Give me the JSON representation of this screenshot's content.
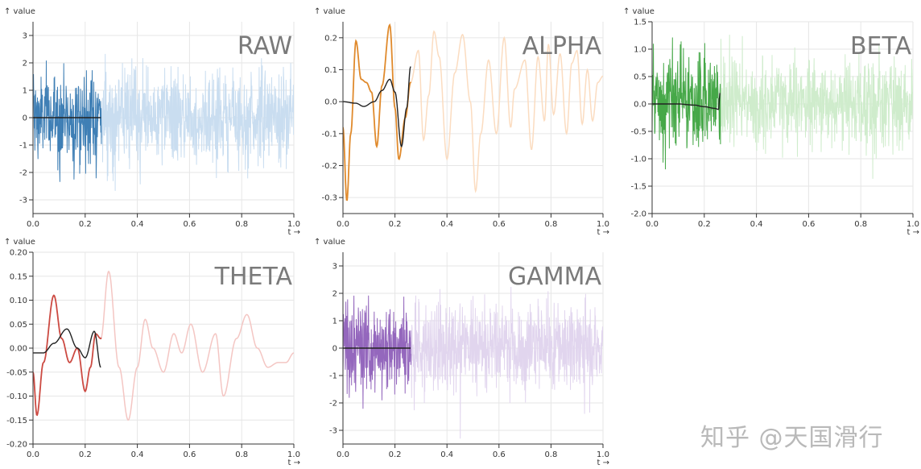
{
  "watermark": "知乎 @天国滑行",
  "chart_data": [
    {
      "type": "line",
      "title": "RAW",
      "ylabel": "↑ value",
      "xlabel": "t →",
      "xlim": [
        0,
        1
      ],
      "ylim": [
        -3.5,
        3.5
      ],
      "xticks": [
        "0.0",
        "0.2",
        "0.4",
        "0.6",
        "0.8",
        "1.0"
      ],
      "yticks": [
        "-3",
        "-2",
        "-1",
        "0",
        "1",
        "2",
        "3"
      ],
      "ytick_values": [
        -3,
        -2,
        -1,
        0,
        1,
        2,
        3
      ],
      "grid": true,
      "signal": "noise",
      "amplitude": 0.85,
      "highlight_end": 0.26,
      "colors": {
        "dark": "#3f7fb5",
        "light": "#c9ddf0"
      },
      "filtered": {
        "to": 0.26,
        "points": [
          [
            0,
            0
          ],
          [
            0.26,
            0
          ]
        ]
      }
    },
    {
      "type": "line",
      "title": "ALPHA",
      "ylabel": "↑ value",
      "xlabel": "t →",
      "xlim": [
        0,
        1
      ],
      "ylim": [
        -0.35,
        0.25
      ],
      "xticks": [
        "0.0",
        "0.2",
        "0.4",
        "0.6",
        "0.8",
        "1.0"
      ],
      "yticks": [
        "-0.3",
        "-0.2",
        "-0.1",
        "0.0",
        "0.1",
        "0.2"
      ],
      "ytick_values": [
        -0.3,
        -0.2,
        -0.1,
        0.0,
        0.1,
        0.2
      ],
      "grid": true,
      "signal": "wave",
      "highlight_end": 0.26,
      "colors": {
        "dark": "#e08a2c",
        "light": "#fbdcc0"
      },
      "series": [
        [
          0,
          -0.08
        ],
        [
          0.015,
          -0.31
        ],
        [
          0.03,
          -0.1
        ],
        [
          0.05,
          0.19
        ],
        [
          0.07,
          0.07
        ],
        [
          0.09,
          0.06
        ],
        [
          0.11,
          0.03
        ],
        [
          0.13,
          -0.14
        ],
        [
          0.15,
          0.05
        ],
        [
          0.18,
          0.24
        ],
        [
          0.2,
          -0.02
        ],
        [
          0.215,
          -0.18
        ],
        [
          0.24,
          -0.05
        ],
        [
          0.26,
          0.06
        ],
        [
          0.29,
          0.16
        ],
        [
          0.31,
          -0.12
        ],
        [
          0.33,
          0.02
        ],
        [
          0.35,
          0.22
        ],
        [
          0.37,
          0.14
        ],
        [
          0.4,
          -0.18
        ],
        [
          0.43,
          0.09
        ],
        [
          0.46,
          0.21
        ],
        [
          0.49,
          0.0
        ],
        [
          0.51,
          -0.28
        ],
        [
          0.53,
          -0.1
        ],
        [
          0.56,
          0.13
        ],
        [
          0.59,
          -0.1
        ],
        [
          0.62,
          0.2
        ],
        [
          0.645,
          -0.08
        ],
        [
          0.66,
          0.04
        ],
        [
          0.7,
          0.13
        ],
        [
          0.725,
          -0.15
        ],
        [
          0.75,
          0.14
        ],
        [
          0.775,
          -0.06
        ],
        [
          0.79,
          0.18
        ],
        [
          0.81,
          -0.04
        ],
        [
          0.835,
          0.15
        ],
        [
          0.86,
          -0.1
        ],
        [
          0.88,
          0.12
        ],
        [
          0.9,
          0.16
        ],
        [
          0.92,
          -0.07
        ],
        [
          0.94,
          0.1
        ],
        [
          0.96,
          -0.06
        ],
        [
          0.98,
          0.06
        ],
        [
          1.0,
          0.08
        ]
      ],
      "filtered": {
        "to": 0.26,
        "points": [
          [
            0,
            0.0
          ],
          [
            0.05,
            -0.005
          ],
          [
            0.08,
            -0.015
          ],
          [
            0.12,
            0.0
          ],
          [
            0.15,
            0.035
          ],
          [
            0.18,
            0.07
          ],
          [
            0.2,
            0.03
          ],
          [
            0.225,
            -0.14
          ],
          [
            0.245,
            -0.02
          ],
          [
            0.26,
            0.11
          ]
        ]
      }
    },
    {
      "type": "line",
      "title": "BETA",
      "ylabel": "↑ value",
      "xlabel": "t →",
      "xlim": [
        0,
        1
      ],
      "ylim": [
        -2.0,
        1.5
      ],
      "xticks": [
        "0.0",
        "0.2",
        "0.4",
        "0.6",
        "0.8",
        "1.0"
      ],
      "yticks": [
        "-2.0",
        "-1.5",
        "-1.0",
        "-0.5",
        "0.0",
        "0.5",
        "1.0",
        "1.5"
      ],
      "ytick_values": [
        -2.0,
        -1.5,
        -1.0,
        -0.5,
        0.0,
        0.5,
        1.0,
        1.5
      ],
      "grid": true,
      "signal": "noise",
      "amplitude": 0.42,
      "highlight_end": 0.26,
      "colors": {
        "dark": "#46a848",
        "light": "#cfeccc"
      },
      "filtered": {
        "to": 0.26,
        "points": [
          [
            0,
            0.0
          ],
          [
            0.1,
            0.0
          ],
          [
            0.16,
            -0.02
          ],
          [
            0.2,
            -0.05
          ],
          [
            0.24,
            -0.08
          ],
          [
            0.255,
            -0.1
          ],
          [
            0.26,
            0.2
          ]
        ]
      }
    },
    {
      "type": "line",
      "title": "THETA",
      "ylabel": "↑ value",
      "xlabel": "t →",
      "xlim": [
        0,
        1
      ],
      "ylim": [
        -0.2,
        0.2
      ],
      "xticks": [
        "0.0",
        "0.2",
        "0.4",
        "0.6",
        "0.8",
        "1.0"
      ],
      "yticks": [
        "-0.20",
        "-0.15",
        "-0.10",
        "-0.05",
        "0.00",
        "0.05",
        "0.10",
        "0.15",
        "0.20"
      ],
      "ytick_values": [
        -0.2,
        -0.15,
        -0.1,
        -0.05,
        0.0,
        0.05,
        0.1,
        0.15,
        0.2
      ],
      "grid": true,
      "signal": "wave",
      "highlight_end": 0.26,
      "colors": {
        "dark": "#cc4a42",
        "light": "#f4c6c3"
      },
      "series": [
        [
          0,
          -0.05
        ],
        [
          0.015,
          -0.14
        ],
        [
          0.04,
          -0.03
        ],
        [
          0.08,
          0.11
        ],
        [
          0.11,
          0.02
        ],
        [
          0.14,
          -0.03
        ],
        [
          0.17,
          0.0
        ],
        [
          0.2,
          -0.09
        ],
        [
          0.22,
          -0.04
        ],
        [
          0.24,
          0.03
        ],
        [
          0.26,
          0.02
        ],
        [
          0.29,
          0.16
        ],
        [
          0.33,
          -0.04
        ],
        [
          0.365,
          -0.15
        ],
        [
          0.4,
          -0.04
        ],
        [
          0.43,
          0.06
        ],
        [
          0.46,
          0.0
        ],
        [
          0.5,
          -0.05
        ],
        [
          0.54,
          0.03
        ],
        [
          0.57,
          -0.01
        ],
        [
          0.605,
          0.05
        ],
        [
          0.65,
          -0.05
        ],
        [
          0.7,
          0.03
        ],
        [
          0.73,
          -0.1
        ],
        [
          0.78,
          0.02
        ],
        [
          0.82,
          0.07
        ],
        [
          0.86,
          0.0
        ],
        [
          0.9,
          -0.04
        ],
        [
          0.94,
          -0.03
        ],
        [
          0.97,
          -0.03
        ],
        [
          1.0,
          -0.01
        ]
      ],
      "filtered": {
        "to": 0.26,
        "points": [
          [
            0,
            -0.01
          ],
          [
            0.04,
            -0.01
          ],
          [
            0.08,
            0.01
          ],
          [
            0.13,
            0.04
          ],
          [
            0.17,
            0.0
          ],
          [
            0.2,
            -0.02
          ],
          [
            0.235,
            0.035
          ],
          [
            0.26,
            -0.04
          ]
        ]
      }
    },
    {
      "type": "line",
      "title": "GAMMA",
      "ylabel": "↑ value",
      "xlabel": "t →",
      "xlim": [
        0,
        1
      ],
      "ylim": [
        -3.5,
        3.5
      ],
      "xticks": [
        "0.0",
        "0.2",
        "0.4",
        "0.6",
        "0.8",
        "1.0"
      ],
      "yticks": [
        "-3",
        "-2",
        "-1",
        "0",
        "1",
        "2",
        "3"
      ],
      "ytick_values": [
        -3,
        -2,
        -1,
        0,
        1,
        2,
        3
      ],
      "grid": true,
      "signal": "noise",
      "amplitude": 0.85,
      "highlight_end": 0.26,
      "colors": {
        "dark": "#9467bd",
        "light": "#e1d5ee"
      },
      "filtered": {
        "to": 0.26,
        "points": [
          [
            0,
            0
          ],
          [
            0.26,
            0
          ]
        ]
      }
    }
  ]
}
